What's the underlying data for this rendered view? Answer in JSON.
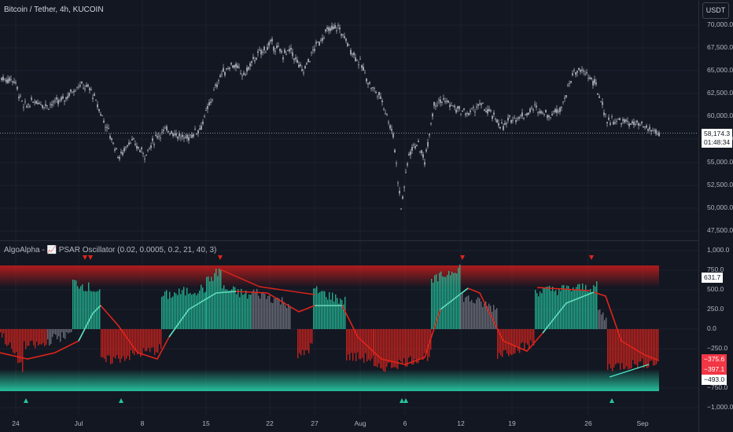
{
  "header": {
    "symbol_title": "Bitcoin / Tether, 4h, KUCOIN",
    "currency_button": "USDT"
  },
  "price_pane": {
    "y_axis_ticks": [
      "70,000.0",
      "67,500.0",
      "65,000.0",
      "62,500.0",
      "60,000.0",
      "57,500.0",
      "55,000.0",
      "52,500.0",
      "50,000.0",
      "47,500.0"
    ],
    "last_price": "58,174.3",
    "countdown": "01:48:34",
    "last_price_value": 58174.3
  },
  "indicator_pane": {
    "title": "AlgoAlpha - 📈 PSAR Oscillator (0.02, 0.0005, 0.2, 21, 40, 3)",
    "y_axis_ticks": [
      "1,000.0",
      "750.0",
      "500.0",
      "250.0",
      "0.0",
      "−250.0",
      "−750.0",
      "−1,000.0"
    ],
    "value_tags": {
      "upper": "631.7",
      "mid1": "−375.6",
      "mid2": "−397.1",
      "lower": "−493.0"
    }
  },
  "x_axis": {
    "labels": [
      "24",
      "Jul",
      "8",
      "15",
      "22",
      "27",
      "Aug",
      "6",
      "12",
      "19",
      "26",
      "Sep"
    ]
  },
  "colors": {
    "background": "#131722",
    "bull": "#26c6a0",
    "bear": "#e0241c",
    "neutral": "#787b86",
    "candle": "#d1d4dc"
  }
}
